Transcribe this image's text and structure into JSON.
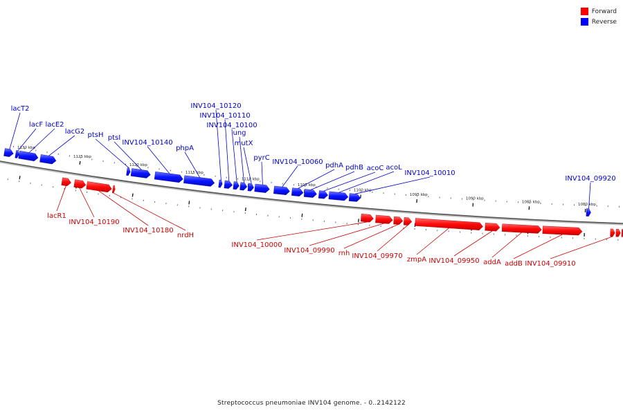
{
  "legend": {
    "forward": {
      "label": "Forward",
      "color": "#ff0000"
    },
    "reverse": {
      "label": "Reverse",
      "color": "#0000ff"
    }
  },
  "caption": "Streptococcus pneumoniae INV104 genome. - 0..2142122",
  "ruler": {
    "unit": "kbp",
    "ticks": [
      {
        "kbp": 1130,
        "label": "1130 kbp"
      },
      {
        "kbp": 1125,
        "label": "1125 kbp"
      },
      {
        "kbp": 1120,
        "label": "1120 kbp"
      },
      {
        "kbp": 1115,
        "label": "1115 kbp"
      },
      {
        "kbp": 1110,
        "label": "1110 kbp"
      },
      {
        "kbp": 1105,
        "label": "1105 kbp"
      },
      {
        "kbp": 1100,
        "label": "1100 kbp"
      },
      {
        "kbp": 1095,
        "label": "1095 kbp"
      },
      {
        "kbp": 1090,
        "label": "1090 kbp"
      },
      {
        "kbp": 1085,
        "label": "1085 kbp"
      },
      {
        "kbp": 1080,
        "label": "1080 kbp"
      }
    ]
  },
  "reverse_genes": [
    {
      "label": "lacT2",
      "start": 1131.7,
      "end": 1130.9
    },
    {
      "label": "lacF",
      "start": 1130.7,
      "end": 1130.4
    },
    {
      "label": "lacE2",
      "start": 1130.4,
      "end": 1128.7
    },
    {
      "label": "lacG2",
      "start": 1128.5,
      "end": 1127.1
    },
    {
      "label": "ptsH",
      "start": 1120.8,
      "end": 1120.5
    },
    {
      "label": "ptsI",
      "start": 1120.4,
      "end": 1118.7
    },
    {
      "label": "INV104_10140",
      "start": 1118.3,
      "end": 1115.8
    },
    {
      "label": "phpA",
      "start": 1115.7,
      "end": 1113.0
    },
    {
      "label": "INV104_10120",
      "start": 1112.6,
      "end": 1112.3
    },
    {
      "label": "INV104_10110",
      "start": 1112.1,
      "end": 1111.4
    },
    {
      "label": "INV104_10100",
      "start": 1111.3,
      "end": 1110.8
    },
    {
      "label": "ung",
      "start": 1110.7,
      "end": 1110.1
    },
    {
      "label": "mutX",
      "start": 1110.0,
      "end": 1109.5
    },
    {
      "label": "pyrC",
      "start": 1109.4,
      "end": 1108.1
    },
    {
      "label": "INV104_10060",
      "start": 1107.7,
      "end": 1106.3
    },
    {
      "label": "pdhA",
      "start": 1106.1,
      "end": 1105.1
    },
    {
      "label": "pdhB",
      "start": 1105.0,
      "end": 1103.9
    },
    {
      "label": "acoC",
      "start": 1103.7,
      "end": 1102.9
    },
    {
      "label": "acoL",
      "start": 1102.8,
      "end": 1101.1
    },
    {
      "label": "INV104_10010",
      "start": 1101.0,
      "end": 1100.0
    },
    {
      "label": "INV104_09920",
      "start": 1079.9,
      "end": 1079.5
    }
  ],
  "forward_genes": [
    {
      "label": "lacR1",
      "start": 1126.3,
      "end": 1125.5
    },
    {
      "label": "INV104_10190",
      "start": 1125.2,
      "end": 1124.2
    },
    {
      "label": "INV104_10180",
      "start": 1124.1,
      "end": 1121.9
    },
    {
      "label": "nrdH",
      "start": 1121.8,
      "end": 1121.6
    },
    {
      "label": "INV104_10000",
      "start": 1099.8,
      "end": 1098.7
    },
    {
      "label": "INV104_09990",
      "start": 1098.5,
      "end": 1097.0
    },
    {
      "label": "rnh",
      "start": 1096.9,
      "end": 1096.1
    },
    {
      "label": "INV104_09970",
      "start": 1096.0,
      "end": 1095.3
    },
    {
      "label": "zmpA",
      "start": 1095.0,
      "end": 1089.0
    },
    {
      "label": "INV104_09950",
      "start": 1088.8,
      "end": 1087.5
    },
    {
      "label": "addA",
      "start": 1087.3,
      "end": 1083.8
    },
    {
      "label": "addB",
      "start": 1083.7,
      "end": 1080.2
    },
    {
      "label": "INV104_09910",
      "start": 1077.7,
      "end": 1077.3
    },
    {
      "label": "",
      "start": 1077.2,
      "end": 1076.8
    },
    {
      "label": "",
      "start": 1076.7,
      "end": 1076.3
    },
    {
      "label": "",
      "start": 1076.2,
      "end": 1075.9
    }
  ]
}
